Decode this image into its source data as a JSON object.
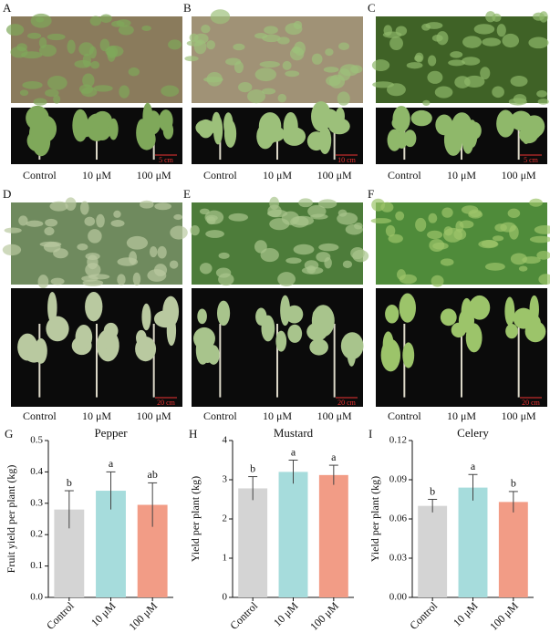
{
  "photo_panels": [
    {
      "letter": "A",
      "scale": "5 cm",
      "labels": [
        "Control",
        "10 μM",
        "100 μM"
      ]
    },
    {
      "letter": "B",
      "scale": "10 cm",
      "labels": [
        "Control",
        "10 μM",
        "100 μM"
      ]
    },
    {
      "letter": "C",
      "scale": "5 cm",
      "labels": [
        "Control",
        "10 μM",
        "100 μM"
      ]
    },
    {
      "letter": "D",
      "scale": "20 cm",
      "labels": [
        "Control",
        "10 μM",
        "100 μM"
      ]
    },
    {
      "letter": "E",
      "scale": "20 cm",
      "labels": [
        "Control",
        "10 μM",
        "100 μM"
      ]
    },
    {
      "letter": "F",
      "scale": "20 cm",
      "labels": [
        "Control",
        "10 μM",
        "100 μM"
      ]
    }
  ],
  "chart_data": [
    {
      "type": "bar",
      "panel": "G",
      "title": "Pepper",
      "ylabel": "Fruit yield per plant (kg)",
      "categories": [
        "Control",
        "10 μM",
        "100 μM"
      ],
      "values": [
        0.28,
        0.34,
        0.295
      ],
      "errors": [
        0.06,
        0.06,
        0.07
      ],
      "annotations": [
        "b",
        "a",
        "ab"
      ],
      "colors": [
        "#d4d4d4",
        "#a6dcdc",
        "#f29c86"
      ],
      "ylim": [
        0,
        0.5
      ],
      "yticks": [
        {
          "value": 0,
          "label": "0.0"
        },
        0.1,
        0.2,
        0.3,
        0.4,
        0.5
      ]
    },
    {
      "type": "bar",
      "panel": "H",
      "title": "Mustard",
      "ylabel": "Yield per plant (kg)",
      "categories": [
        "Control",
        "10 μM",
        "100 μM"
      ],
      "values": [
        2.78,
        3.2,
        3.12
      ],
      "errors": [
        0.3,
        0.3,
        0.25
      ],
      "annotations": [
        "b",
        "a",
        "a"
      ],
      "colors": [
        "#d4d4d4",
        "#a6dcdc",
        "#f29c86"
      ],
      "ylim": [
        0,
        4
      ],
      "yticks": [
        0,
        1,
        2,
        3,
        4
      ]
    },
    {
      "type": "bar",
      "panel": "I",
      "title": "Celery",
      "ylabel": "Yield per plant (kg)",
      "categories": [
        "Control",
        "10 μM",
        "100 μM"
      ],
      "values": [
        0.07,
        0.084,
        0.073
      ],
      "errors": [
        0.005,
        0.01,
        0.008
      ],
      "annotations": [
        "b",
        "a",
        "b"
      ],
      "colors": [
        "#d4d4d4",
        "#a6dcdc",
        "#f29c86"
      ],
      "ylim": [
        0,
        0.12
      ],
      "yticks": [
        {
          "value": 0,
          "label": "0.00"
        },
        0.03,
        0.06,
        0.09,
        0.12
      ]
    }
  ]
}
